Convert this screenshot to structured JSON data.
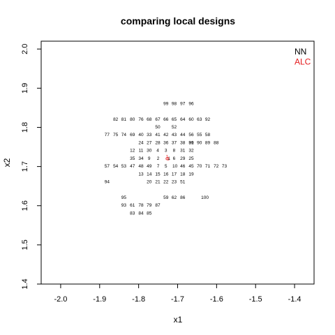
{
  "chart_data": {
    "type": "scatter",
    "title": "comparing local designs",
    "xlabel": "x1",
    "ylabel": "x2",
    "xlim": [
      -2.05,
      -1.35
    ],
    "ylim": [
      1.4,
      2.02
    ],
    "xticks": [
      {
        "value": -2.0,
        "label": "-2.0"
      },
      {
        "value": -1.9,
        "label": "-1.9"
      },
      {
        "value": -1.8,
        "label": "-1.8"
      },
      {
        "value": -1.7,
        "label": "-1.7"
      },
      {
        "value": -1.6,
        "label": "-1.6"
      },
      {
        "value": -1.5,
        "label": "-1.5"
      },
      {
        "value": -1.4,
        "label": "-1.4"
      }
    ],
    "yticks": [
      {
        "value": 1.4,
        "label": "1.4"
      },
      {
        "value": 1.5,
        "label": "1.5"
      },
      {
        "value": 1.6,
        "label": "1.6"
      },
      {
        "value": 1.7,
        "label": "1.7"
      },
      {
        "value": 1.8,
        "label": "1.8"
      },
      {
        "value": 1.9,
        "label": "1.9"
      },
      {
        "value": 2.0,
        "label": "2.0"
      }
    ],
    "grid": false,
    "legend": {
      "position": "top-right",
      "entries": [
        {
          "label": "NN",
          "color": "#000000"
        },
        {
          "label": "ALC",
          "color": "#e41a1c"
        }
      ]
    },
    "series": [
      {
        "name": "NN",
        "color": "#000000",
        "marker": "text",
        "points": [
          {
            "label": "1",
            "x": -1.722,
            "y": 1.72
          },
          {
            "label": "2",
            "x": -1.75,
            "y": 1.72
          },
          {
            "label": "3",
            "x": -1.73,
            "y": 1.74
          },
          {
            "label": "4",
            "x": -1.751,
            "y": 1.74
          },
          {
            "label": "5",
            "x": -1.73,
            "y": 1.7
          },
          {
            "label": "6",
            "x": -1.709,
            "y": 1.72
          },
          {
            "label": "7",
            "x": -1.75,
            "y": 1.7
          },
          {
            "label": "8",
            "x": -1.709,
            "y": 1.74
          },
          {
            "label": "9",
            "x": -1.773,
            "y": 1.72
          },
          {
            "label": "10",
            "x": -1.707,
            "y": 1.7
          },
          {
            "label": "11",
            "x": -1.794,
            "y": 1.74
          },
          {
            "label": "12",
            "x": -1.816,
            "y": 1.74
          },
          {
            "label": "13",
            "x": -1.794,
            "y": 1.68
          },
          {
            "label": "14",
            "x": -1.773,
            "y": 1.68
          },
          {
            "label": "15",
            "x": -1.751,
            "y": 1.68
          },
          {
            "label": "16",
            "x": -1.73,
            "y": 1.68
          },
          {
            "label": "17",
            "x": -1.709,
            "y": 1.68
          },
          {
            "label": "18",
            "x": -1.687,
            "y": 1.68
          },
          {
            "label": "19",
            "x": -1.665,
            "y": 1.68
          },
          {
            "label": "20",
            "x": -1.773,
            "y": 1.66
          },
          {
            "label": "21",
            "x": -1.751,
            "y": 1.66
          },
          {
            "label": "22",
            "x": -1.73,
            "y": 1.66
          },
          {
            "label": "23",
            "x": -1.709,
            "y": 1.66
          },
          {
            "label": "24",
            "x": -1.794,
            "y": 1.76
          },
          {
            "label": "25",
            "x": -1.665,
            "y": 1.72
          },
          {
            "label": "27",
            "x": -1.773,
            "y": 1.76
          },
          {
            "label": "28",
            "x": -1.751,
            "y": 1.76
          },
          {
            "label": "29",
            "x": -1.687,
            "y": 1.72
          },
          {
            "label": "30",
            "x": -1.773,
            "y": 1.74
          },
          {
            "label": "31",
            "x": -1.687,
            "y": 1.74
          },
          {
            "label": "32",
            "x": -1.665,
            "y": 1.74
          },
          {
            "label": "33",
            "x": -1.773,
            "y": 1.78
          },
          {
            "label": "34",
            "x": -1.794,
            "y": 1.72
          },
          {
            "label": "35",
            "x": -1.816,
            "y": 1.72
          },
          {
            "label": "36",
            "x": -1.73,
            "y": 1.76
          },
          {
            "label": "37",
            "x": -1.709,
            "y": 1.76
          },
          {
            "label": "38",
            "x": -1.687,
            "y": 1.76
          },
          {
            "label": "39",
            "x": -1.665,
            "y": 1.76
          },
          {
            "label": "40",
            "x": -1.794,
            "y": 1.78
          },
          {
            "label": "41",
            "x": -1.751,
            "y": 1.78
          },
          {
            "label": "42",
            "x": -1.73,
            "y": 1.78
          },
          {
            "label": "43",
            "x": -1.709,
            "y": 1.78
          },
          {
            "label": "44",
            "x": -1.687,
            "y": 1.78
          },
          {
            "label": "45",
            "x": -1.665,
            "y": 1.7
          },
          {
            "label": "46",
            "x": -1.687,
            "y": 1.7
          },
          {
            "label": "47",
            "x": -1.816,
            "y": 1.7
          },
          {
            "label": "48",
            "x": -1.794,
            "y": 1.7
          },
          {
            "label": "49",
            "x": -1.773,
            "y": 1.7
          },
          {
            "label": "50",
            "x": -1.751,
            "y": 1.8
          },
          {
            "label": "51",
            "x": -1.687,
            "y": 1.66
          },
          {
            "label": "52",
            "x": -1.709,
            "y": 1.8
          },
          {
            "label": "53",
            "x": -1.838,
            "y": 1.7
          },
          {
            "label": "54",
            "x": -1.859,
            "y": 1.7
          },
          {
            "label": "55",
            "x": -1.644,
            "y": 1.78
          },
          {
            "label": "56",
            "x": -1.665,
            "y": 1.78
          },
          {
            "label": "57",
            "x": -1.881,
            "y": 1.7
          },
          {
            "label": "58",
            "x": -1.623,
            "y": 1.78
          },
          {
            "label": "59",
            "x": -1.73,
            "y": 1.62
          },
          {
            "label": "60",
            "x": -1.665,
            "y": 1.82
          },
          {
            "label": "61",
            "x": -1.816,
            "y": 1.6
          },
          {
            "label": "62",
            "x": -1.709,
            "y": 1.62
          },
          {
            "label": "63",
            "x": -1.644,
            "y": 1.82
          },
          {
            "label": "64",
            "x": -1.687,
            "y": 1.82
          },
          {
            "label": "65",
            "x": -1.709,
            "y": 1.82
          },
          {
            "label": "66",
            "x": -1.73,
            "y": 1.82
          },
          {
            "label": "67",
            "x": -1.751,
            "y": 1.82
          },
          {
            "label": "68",
            "x": -1.773,
            "y": 1.82
          },
          {
            "label": "69",
            "x": -1.816,
            "y": 1.78
          },
          {
            "label": "70",
            "x": -1.644,
            "y": 1.7
          },
          {
            "label": "71",
            "x": -1.623,
            "y": 1.7
          },
          {
            "label": "72",
            "x": -1.601,
            "y": 1.7
          },
          {
            "label": "73",
            "x": -1.58,
            "y": 1.7
          },
          {
            "label": "74",
            "x": -1.838,
            "y": 1.78
          },
          {
            "label": "75",
            "x": -1.859,
            "y": 1.78
          },
          {
            "label": "76",
            "x": -1.794,
            "y": 1.82
          },
          {
            "label": "77",
            "x": -1.881,
            "y": 1.78
          },
          {
            "label": "78",
            "x": -1.794,
            "y": 1.6
          },
          {
            "label": "79",
            "x": -1.773,
            "y": 1.6
          },
          {
            "label": "80",
            "x": -1.816,
            "y": 1.82
          },
          {
            "label": "81",
            "x": -1.838,
            "y": 1.82
          },
          {
            "label": "82",
            "x": -1.859,
            "y": 1.82
          },
          {
            "label": "83",
            "x": -1.816,
            "y": 1.58
          },
          {
            "label": "84",
            "x": -1.794,
            "y": 1.58
          },
          {
            "label": "85",
            "x": -1.773,
            "y": 1.58
          },
          {
            "label": "86",
            "x": -1.687,
            "y": 1.62
          },
          {
            "label": "87",
            "x": -1.751,
            "y": 1.6
          },
          {
            "label": "88",
            "x": -1.601,
            "y": 1.76
          },
          {
            "label": "89",
            "x": -1.623,
            "y": 1.76
          },
          {
            "label": "90",
            "x": -1.644,
            "y": 1.76
          },
          {
            "label": "91",
            "x": -1.665,
            "y": 1.76
          },
          {
            "label": "92",
            "x": -1.623,
            "y": 1.82
          },
          {
            "label": "93",
            "x": -1.838,
            "y": 1.6
          },
          {
            "label": "94",
            "x": -1.881,
            "y": 1.66
          },
          {
            "label": "95",
            "x": -1.838,
            "y": 1.62
          },
          {
            "label": "96",
            "x": -1.665,
            "y": 1.86
          },
          {
            "label": "97",
            "x": -1.687,
            "y": 1.86
          },
          {
            "label": "98",
            "x": -1.709,
            "y": 1.86
          },
          {
            "label": "99",
            "x": -1.73,
            "y": 1.86
          },
          {
            "label": "100",
            "x": -1.63,
            "y": 1.62
          }
        ]
      },
      {
        "name": "ALC",
        "color": "#e41a1c",
        "marker": "text",
        "points": [
          {
            "label": "1",
            "x": -1.727,
            "y": 1.724
          },
          {
            "label": "2",
            "x": -1.724,
            "y": 1.719
          }
        ]
      }
    ],
    "reference_point": {
      "x": -1.727,
      "y": 1.72,
      "marker": "open-circle",
      "color": "#e41a1c"
    }
  }
}
